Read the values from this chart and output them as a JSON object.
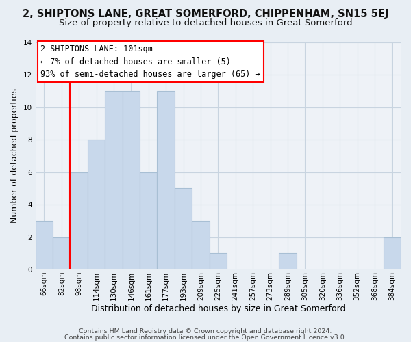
{
  "title_line1": "2, SHIPTONS LANE, GREAT SOMERFORD, CHIPPENHAM, SN15 5EJ",
  "title_line2": "Size of property relative to detached houses in Great Somerford",
  "xlabel": "Distribution of detached houses by size in Great Somerford",
  "ylabel": "Number of detached properties",
  "bin_labels": [
    "66sqm",
    "82sqm",
    "98sqm",
    "114sqm",
    "130sqm",
    "146sqm",
    "161sqm",
    "177sqm",
    "193sqm",
    "209sqm",
    "225sqm",
    "241sqm",
    "257sqm",
    "273sqm",
    "289sqm",
    "305sqm",
    "320sqm",
    "336sqm",
    "352sqm",
    "368sqm",
    "384sqm"
  ],
  "bar_values": [
    3,
    2,
    6,
    8,
    11,
    11,
    6,
    11,
    5,
    3,
    1,
    0,
    0,
    0,
    1,
    0,
    0,
    0,
    0,
    0,
    2
  ],
  "bar_color": "#c8d8eb",
  "bar_edge_color": "#a8bfd4",
  "ylim": [
    0,
    14
  ],
  "yticks": [
    0,
    2,
    4,
    6,
    8,
    10,
    12,
    14
  ],
  "red_line_index": 2,
  "annotation_line1": "2 SHIPTONS LANE: 101sqm",
  "annotation_line2": "← 7% of detached houses are smaller (5)",
  "annotation_line3": "93% of semi-detached houses are larger (65) →",
  "footer_line1": "Contains HM Land Registry data © Crown copyright and database right 2024.",
  "footer_line2": "Contains public sector information licensed under the Open Government Licence v3.0.",
  "background_color": "#e8eef4",
  "plot_bg_color": "#eef2f7",
  "grid_color": "#c8d4e0",
  "title1_fontsize": 10.5,
  "title2_fontsize": 9.5,
  "xlabel_fontsize": 9,
  "ylabel_fontsize": 9,
  "tick_fontsize": 7.5,
  "footer_fontsize": 6.8,
  "ann_fontsize": 8.5
}
